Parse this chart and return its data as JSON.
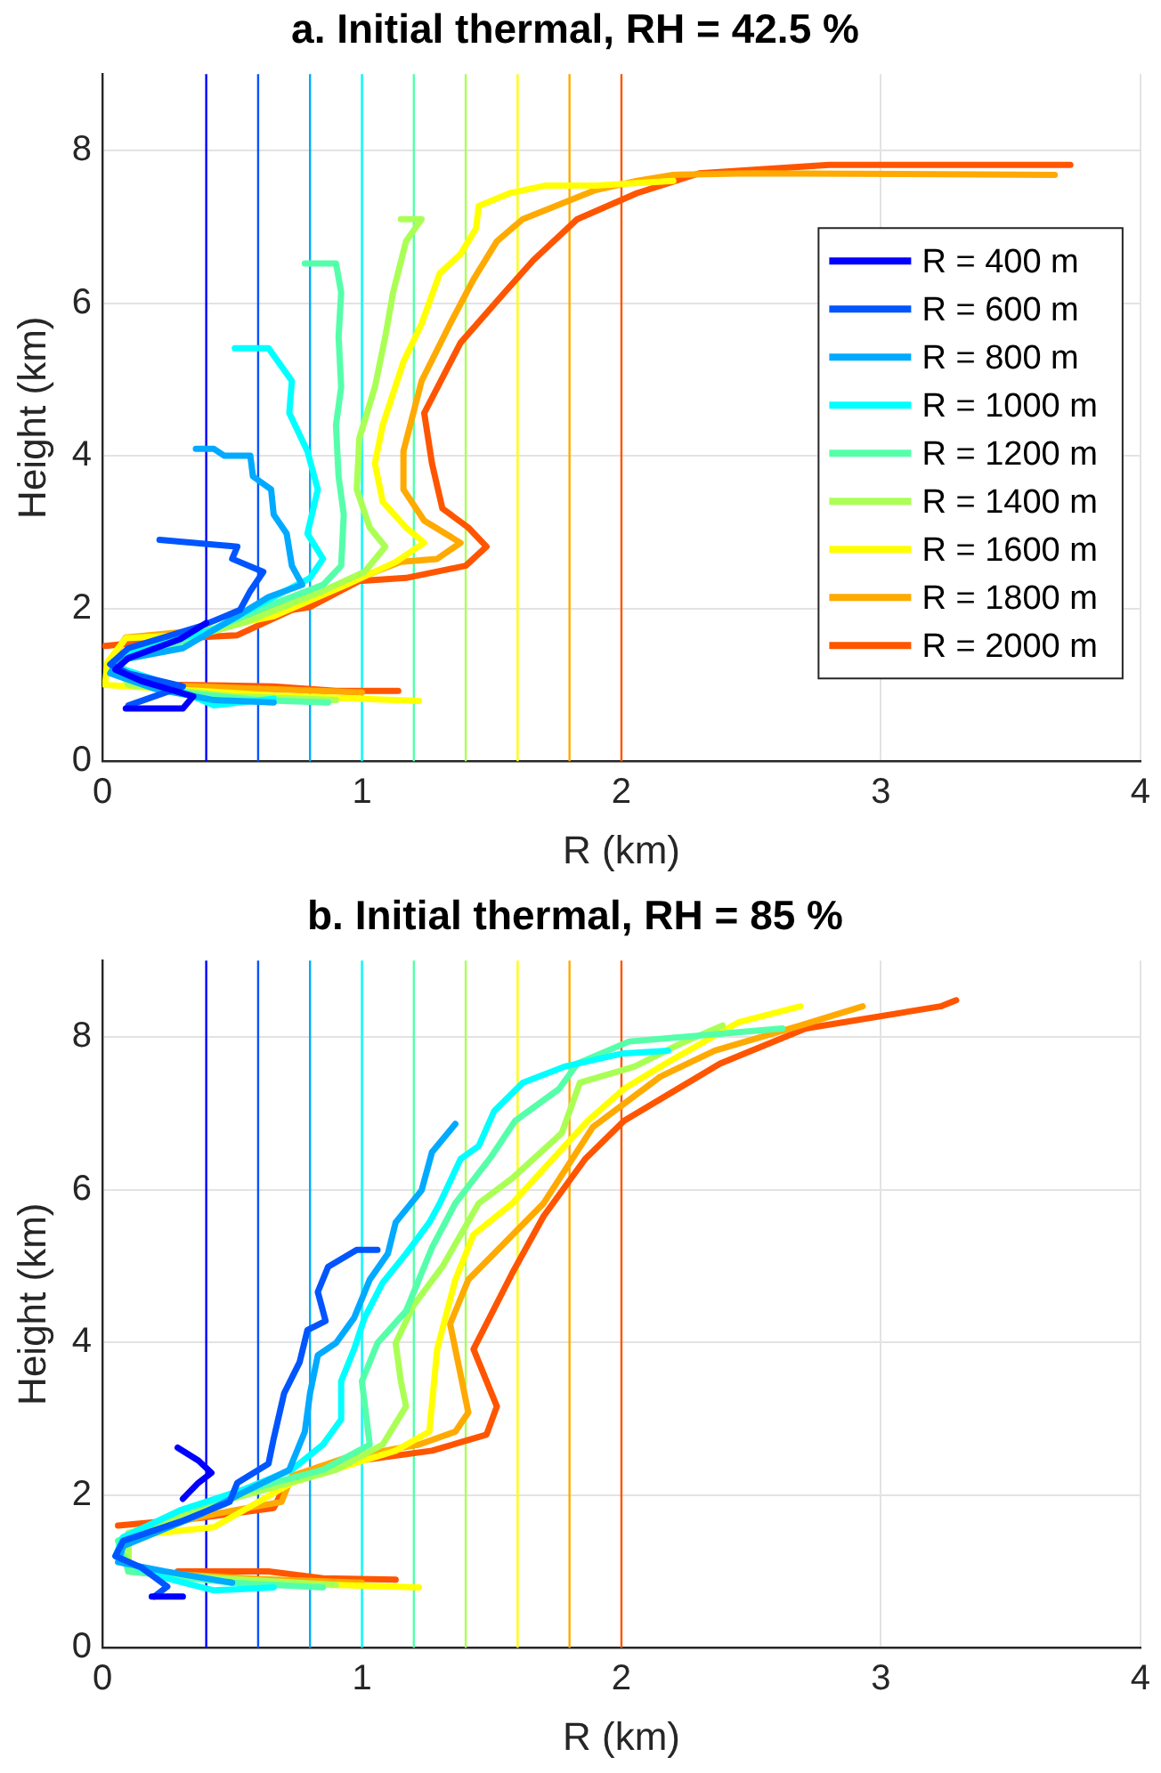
{
  "chart_data": [
    {
      "type": "line",
      "title": "a. Initial thermal, RH = 42.5 %",
      "xlabel": "R (km)",
      "ylabel": "Height (km)",
      "xlim": [
        0,
        4
      ],
      "ylim": [
        0,
        9
      ],
      "xticks": [
        0,
        1,
        2,
        3,
        4
      ],
      "yticks": [
        0,
        2,
        4,
        6,
        8
      ],
      "grid": true,
      "legend": "right",
      "marker": "none",
      "line_style": "solid",
      "ref_lines": [
        {
          "axis": "x",
          "value": 0.4,
          "color": "#0000ff"
        },
        {
          "axis": "x",
          "value": 0.6,
          "color": "#0055ff"
        },
        {
          "axis": "x",
          "value": 0.8,
          "color": "#00aaff"
        },
        {
          "axis": "x",
          "value": 1.0,
          "color": "#00ffff"
        },
        {
          "axis": "x",
          "value": 1.2,
          "color": "#55ffaa"
        },
        {
          "axis": "x",
          "value": 1.4,
          "color": "#aaff55"
        },
        {
          "axis": "x",
          "value": 1.6,
          "color": "#ffff00"
        },
        {
          "axis": "x",
          "value": 1.8,
          "color": "#ffaa00"
        },
        {
          "axis": "x",
          "value": 2.0,
          "color": "#ff5500"
        }
      ],
      "series": [
        {
          "name": "R = 400 m",
          "color": "#0000ff",
          "x": [
            0.4,
            0.3,
            0.1,
            0.05,
            0.15,
            0.35,
            0.31,
            0.09
          ],
          "values": [
            1.81,
            1.6,
            1.35,
            1.2,
            1.05,
            0.85,
            0.69,
            0.69
          ]
        },
        {
          "name": "R = 600 m",
          "color": "#0055ff",
          "x": [
            0.22,
            0.52,
            0.5,
            0.62,
            0.57,
            0.53,
            0.38,
            0.1,
            0.03,
            0.1,
            0.31,
            0.1
          ],
          "values": [
            2.9,
            2.81,
            2.65,
            2.48,
            2.23,
            1.98,
            1.77,
            1.48,
            1.27,
            1.15,
            0.98,
            0.73
          ]
        },
        {
          "name": "R = 800 m",
          "color": "#00aaff",
          "x": [
            0.36,
            0.43,
            0.47,
            0.57,
            0.58,
            0.65,
            0.66,
            0.71,
            0.73,
            0.77,
            0.64,
            0.52,
            0.31,
            0.06,
            0.03,
            0.2,
            0.43,
            0.66
          ],
          "values": [
            4.09,
            4.09,
            4.0,
            4.0,
            3.73,
            3.56,
            3.23,
            2.98,
            2.56,
            2.31,
            2.15,
            1.9,
            1.48,
            1.32,
            1.15,
            0.95,
            0.8,
            0.77
          ]
        },
        {
          "name": "R = 1000 m",
          "color": "#00ffff",
          "x": [
            0.51,
            0.64,
            0.73,
            0.72,
            0.79,
            0.83,
            0.79,
            0.85,
            0.8,
            0.66,
            0.43,
            0.08,
            0.06,
            0.2,
            0.43,
            0.66
          ],
          "values": [
            5.41,
            5.41,
            4.98,
            4.56,
            4.06,
            3.56,
            2.98,
            2.65,
            2.4,
            2.15,
            1.73,
            1.4,
            1.23,
            1.07,
            0.73,
            0.82
          ]
        },
        {
          "name": "R = 1200 m",
          "color": "#55ffaa",
          "x": [
            0.78,
            0.9,
            0.92,
            0.91,
            0.92,
            0.9,
            0.91,
            0.93,
            0.92,
            0.85,
            0.66,
            0.31,
            0.08,
            0.05,
            0.3,
            0.6,
            0.87
          ],
          "values": [
            6.52,
            6.52,
            6.14,
            5.56,
            4.9,
            4.4,
            3.73,
            3.23,
            2.56,
            2.31,
            2.06,
            1.57,
            1.32,
            1.15,
            0.9,
            0.8,
            0.77
          ]
        },
        {
          "name": "R = 1400 m",
          "color": "#aaff55",
          "x": [
            1.15,
            1.23,
            1.17,
            1.12,
            1.09,
            1.05,
            0.99,
            0.98,
            1.03,
            1.09,
            1.01,
            0.85,
            0.55,
            0.2,
            0.05,
            0.1,
            0.5,
            0.9
          ],
          "values": [
            7.1,
            7.1,
            6.81,
            6.14,
            5.56,
            4.9,
            4.23,
            3.56,
            3.06,
            2.81,
            2.48,
            2.23,
            1.82,
            1.48,
            1.3,
            1.0,
            0.85,
            0.8
          ]
        },
        {
          "name": "R = 1600 m",
          "color": "#ffff00",
          "x": [
            2.2,
            1.9,
            1.71,
            1.57,
            1.45,
            1.44,
            1.38,
            1.3,
            1.23,
            1.16,
            1.08,
            1.05,
            1.08,
            1.17,
            1.24,
            1.13,
            0.94,
            0.66,
            0.31,
            0.09,
            0.02,
            0.01,
            0.66,
            1.22
          ],
          "values": [
            7.6,
            7.54,
            7.54,
            7.44,
            7.27,
            6.98,
            6.64,
            6.39,
            5.73,
            5.23,
            4.4,
            3.9,
            3.4,
            3.06,
            2.86,
            2.61,
            2.31,
            1.9,
            1.65,
            1.61,
            1.3,
            1.0,
            0.86,
            0.79
          ]
        },
        {
          "name": "R = 1800 m",
          "color": "#ffaa00",
          "x": [
            3.67,
            2.5,
            2.2,
            2.06,
            1.9,
            1.62,
            1.52,
            1.43,
            1.34,
            1.23,
            1.16,
            1.16,
            1.24,
            1.38,
            1.29,
            1.15,
            0.99,
            0.66,
            0.43,
            0.09,
            0.03,
            0.2,
            0.6,
            1.0
          ],
          "values": [
            7.68,
            7.7,
            7.68,
            7.6,
            7.48,
            7.1,
            6.81,
            6.31,
            5.73,
            4.98,
            4.06,
            3.56,
            3.15,
            2.86,
            2.65,
            2.61,
            2.4,
            1.98,
            1.73,
            1.62,
            1.3,
            1.0,
            0.95,
            0.9
          ]
        },
        {
          "name": "R = 2000 m",
          "color": "#ff5500",
          "x": [
            3.73,
            2.8,
            2.3,
            2.06,
            1.83,
            1.66,
            1.55,
            1.38,
            1.24,
            1.27,
            1.31,
            1.41,
            1.48,
            1.4,
            1.17,
            0.99,
            0.8,
            0.73,
            0.52,
            0.31,
            0.01,
            null,
            0.3,
            0.66,
            0.9,
            1.14
          ],
          "values": [
            7.81,
            7.81,
            7.7,
            7.44,
            7.1,
            6.56,
            6.14,
            5.48,
            4.56,
            3.9,
            3.31,
            3.06,
            2.81,
            2.56,
            2.4,
            2.36,
            2.02,
            1.98,
            1.65,
            1.61,
            1.51,
            null,
            1.0,
            0.98,
            0.92,
            0.92
          ]
        }
      ]
    },
    {
      "type": "line",
      "title": "b. Initial thermal, RH = 85 %",
      "xlabel": "R (km)",
      "ylabel": "Height (km)",
      "xlim": [
        0,
        4
      ],
      "ylim": [
        0,
        9
      ],
      "xticks": [
        0,
        1,
        2,
        3,
        4
      ],
      "yticks": [
        0,
        2,
        4,
        6,
        8
      ],
      "grid": true,
      "marker": "none",
      "line_style": "solid",
      "ref_lines": [
        {
          "axis": "x",
          "value": 0.4,
          "color": "#0000ff"
        },
        {
          "axis": "x",
          "value": 0.6,
          "color": "#0055ff"
        },
        {
          "axis": "x",
          "value": 0.8,
          "color": "#00aaff"
        },
        {
          "axis": "x",
          "value": 1.0,
          "color": "#00ffff"
        },
        {
          "axis": "x",
          "value": 1.2,
          "color": "#55ffaa"
        },
        {
          "axis": "x",
          "value": 1.4,
          "color": "#aaff55"
        },
        {
          "axis": "x",
          "value": 1.6,
          "color": "#ffff00"
        },
        {
          "axis": "x",
          "value": 1.8,
          "color": "#ffaa00"
        },
        {
          "axis": "x",
          "value": 2.0,
          "color": "#ff5500"
        }
      ],
      "series": [
        {
          "color": "#0000ff",
          "x": [
            0.29,
            0.37,
            0.42,
            0.37,
            0.31,
            null,
            0.31,
            0.19
          ],
          "values": [
            2.62,
            2.45,
            2.29,
            2.16,
            1.95,
            null,
            0.67,
            0.67
          ]
        },
        {
          "color": "#0055ff",
          "x": [
            1.06,
            0.98,
            0.87,
            0.83,
            0.86,
            0.79,
            0.76,
            0.7,
            0.66,
            0.64,
            0.52,
            0.49,
            0.3,
            0.08,
            0.05,
            0.15,
            0.25,
            0.2
          ],
          "values": [
            5.21,
            5.21,
            4.99,
            4.66,
            4.28,
            4.16,
            3.74,
            3.33,
            2.74,
            2.41,
            2.16,
            1.91,
            1.65,
            1.4,
            1.2,
            1.05,
            0.8,
            0.67
          ]
        },
        {
          "color": "#00aaff",
          "x": [
            1.36,
            1.27,
            1.23,
            1.13,
            1.1,
            1.03,
            0.97,
            0.9,
            0.83,
            0.8,
            0.78,
            0.72,
            0.57,
            0.38,
            0.08,
            0.06,
            0.24,
            0.5
          ],
          "values": [
            6.86,
            6.49,
            5.99,
            5.57,
            5.16,
            4.82,
            4.32,
            3.99,
            3.83,
            3.33,
            2.83,
            2.33,
            2.08,
            1.75,
            1.33,
            1.12,
            1.0,
            0.85
          ]
        },
        {
          "color": "#00ffff",
          "x": [
            2.18,
            2.0,
            1.78,
            1.62,
            1.51,
            1.45,
            1.38,
            1.3,
            1.26,
            1.17,
            1.08,
            1.01,
            0.97,
            0.92,
            0.92,
            0.85,
            0.73,
            0.55,
            0.3,
            0.08,
            0.05,
            0.2,
            0.43,
            0.66
          ],
          "values": [
            7.82,
            7.78,
            7.61,
            7.4,
            7.03,
            6.57,
            6.4,
            5.82,
            5.57,
            5.16,
            4.78,
            4.32,
            3.91,
            3.49,
            2.99,
            2.66,
            2.33,
            2.08,
            1.8,
            1.45,
            1.2,
            0.95,
            0.75,
            0.79
          ]
        },
        {
          "color": "#55ffaa",
          "x": [
            2.62,
            2.03,
            1.83,
            1.76,
            1.59,
            1.5,
            1.36,
            1.27,
            1.17,
            1.06,
            1.0,
            1.03,
            0.85,
            0.66,
            0.3,
            0.06,
            0.1,
            0.5,
            0.85
          ],
          "values": [
            8.11,
            7.94,
            7.65,
            7.32,
            6.9,
            6.44,
            5.82,
            5.24,
            4.41,
            3.99,
            3.49,
            2.66,
            2.33,
            2.16,
            1.8,
            1.4,
            1.0,
            0.85,
            0.79
          ]
        },
        {
          "color": "#aaff55",
          "x": [
            2.39,
            2.22,
            2.05,
            1.84,
            1.77,
            1.58,
            1.45,
            1.31,
            1.2,
            1.13,
            1.15,
            1.17,
            1.08,
            0.9,
            0.5,
            0.1,
            0.1,
            0.5,
            0.9
          ],
          "values": [
            8.15,
            7.9,
            7.61,
            7.4,
            6.74,
            6.15,
            5.82,
            4.99,
            4.49,
            3.99,
            3.49,
            3.16,
            2.66,
            2.33,
            1.95,
            1.5,
            1.0,
            0.9,
            0.82
          ]
        },
        {
          "color": "#ffff00",
          "x": [
            2.69,
            2.45,
            2.17,
            2.01,
            1.87,
            1.58,
            1.43,
            1.36,
            1.29,
            1.26,
            1.13,
            0.73,
            0.43,
            0.1,
            0.1,
            0.6,
            1.22
          ],
          "values": [
            8.4,
            8.19,
            7.65,
            7.32,
            6.9,
            5.82,
            5.41,
            4.82,
            3.91,
            2.83,
            2.58,
            2.16,
            1.58,
            1.46,
            1.0,
            0.85,
            0.79
          ]
        },
        {
          "color": "#ffaa00",
          "x": [
            2.93,
            2.69,
            2.36,
            2.15,
            1.89,
            1.7,
            1.41,
            1.34,
            1.38,
            1.41,
            1.36,
            1.22,
            0.94,
            0.73,
            0.69,
            0.43,
            0.1,
            0.1,
            0.6,
            1.0
          ],
          "values": [
            8.4,
            8.15,
            7.82,
            7.48,
            6.82,
            5.82,
            4.82,
            4.24,
            3.58,
            3.08,
            2.83,
            2.66,
            2.49,
            2.25,
            1.91,
            1.75,
            1.5,
            1.0,
            0.9,
            0.85
          ]
        },
        {
          "color": "#ff5500",
          "x": [
            3.29,
            3.23,
            2.71,
            2.38,
            2.01,
            1.86,
            1.7,
            1.58,
            1.43,
            1.52,
            1.48,
            1.27,
            0.99,
            0.71,
            0.66,
            0.38,
            0.06,
            null,
            0.29,
            0.64,
            0.85,
            1.13
          ],
          "values": [
            8.48,
            8.4,
            8.11,
            7.65,
            6.9,
            6.4,
            5.65,
            4.91,
            3.91,
            3.16,
            2.79,
            2.58,
            2.45,
            2.16,
            1.83,
            1.7,
            1.6,
            null,
            1.0,
            1.0,
            0.91,
            0.89
          ]
        }
      ]
    }
  ]
}
